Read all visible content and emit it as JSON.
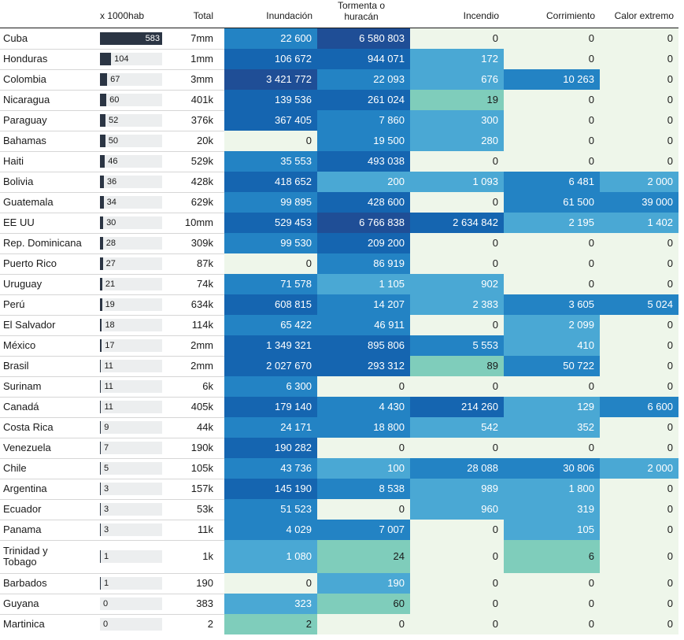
{
  "headers": {
    "per1000": "x 1000hab",
    "total": "Total",
    "cats": [
      "Inundación",
      "Tormenta o\nhuracán",
      "Incendio",
      "Corrimiento",
      "Calor extremo"
    ]
  },
  "colors": {
    "bar": "#2b3544",
    "bar_bg": "#eceeef",
    "zero": "#eef6ea",
    "scale": [
      "#7fcdbb",
      "#4aa8d4",
      "#2383c4",
      "#1565b0",
      "#1f4e96"
    ]
  },
  "chart_data": {
    "type": "table",
    "columns": [
      "x 1000hab",
      "Total",
      "Inundación",
      "Tormenta o huracán",
      "Incendio",
      "Corrimiento",
      "Calor extremo"
    ],
    "rows": [
      {
        "country": "Cuba",
        "per1000": 583,
        "per1000_label": "583",
        "total": "7mm",
        "vals": [
          22600,
          6580803,
          0,
          0,
          0
        ],
        "labels": [
          "22 600",
          "6 580 803",
          "0",
          "0",
          "0"
        ]
      },
      {
        "country": "Honduras",
        "per1000": 104,
        "per1000_label": "104",
        "total": "1mm",
        "vals": [
          106672,
          944071,
          172,
          0,
          0
        ],
        "labels": [
          "106 672",
          "944 071",
          "172",
          "0",
          "0"
        ]
      },
      {
        "country": "Colombia",
        "per1000": 67,
        "per1000_label": "67",
        "total": "3mm",
        "vals": [
          3421772,
          22093,
          676,
          10263,
          0
        ],
        "labels": [
          "3 421 772",
          "22 093",
          "676",
          "10 263",
          "0"
        ]
      },
      {
        "country": "Nicaragua",
        "per1000": 60,
        "per1000_label": "60",
        "total": "401k",
        "vals": [
          139536,
          261024,
          19,
          0,
          0
        ],
        "labels": [
          "139 536",
          "261 024",
          "19",
          "0",
          "0"
        ]
      },
      {
        "country": "Paraguay",
        "per1000": 52,
        "per1000_label": "52",
        "total": "376k",
        "vals": [
          367405,
          7860,
          300,
          0,
          0
        ],
        "labels": [
          "367 405",
          "7 860",
          "300",
          "0",
          "0"
        ]
      },
      {
        "country": "Bahamas",
        "per1000": 50,
        "per1000_label": "50",
        "total": "20k",
        "vals": [
          0,
          19500,
          280,
          0,
          0
        ],
        "labels": [
          "0",
          "19 500",
          "280",
          "0",
          "0"
        ]
      },
      {
        "country": "Haiti",
        "per1000": 46,
        "per1000_label": "46",
        "total": "529k",
        "vals": [
          35553,
          493038,
          0,
          0,
          0
        ],
        "labels": [
          "35 553",
          "493 038",
          "0",
          "0",
          "0"
        ]
      },
      {
        "country": "Bolivia",
        "per1000": 36,
        "per1000_label": "36",
        "total": "428k",
        "vals": [
          418652,
          200,
          1093,
          6481,
          2000
        ],
        "labels": [
          "418 652",
          "200",
          "1 093",
          "6 481",
          "2 000"
        ]
      },
      {
        "country": "Guatemala",
        "per1000": 34,
        "per1000_label": "34",
        "total": "629k",
        "vals": [
          99895,
          428600,
          0,
          61500,
          39000
        ],
        "labels": [
          "99 895",
          "428 600",
          "0",
          "61 500",
          "39 000"
        ]
      },
      {
        "country": "EE UU",
        "per1000": 30,
        "per1000_label": "30",
        "total": "10mm",
        "vals": [
          529453,
          6766838,
          2634842,
          2195,
          1402
        ],
        "labels": [
          "529 453",
          "6 766 838",
          "2 634 842",
          "2 195",
          "1 402"
        ]
      },
      {
        "country": "Rep. Dominicana",
        "per1000": 28,
        "per1000_label": "28",
        "total": "309k",
        "vals": [
          99530,
          209200,
          0,
          0,
          0
        ],
        "labels": [
          "99 530",
          "209 200",
          "0",
          "0",
          "0"
        ]
      },
      {
        "country": "Puerto Rico",
        "per1000": 27,
        "per1000_label": "27",
        "total": "87k",
        "vals": [
          0,
          86919,
          0,
          0,
          0
        ],
        "labels": [
          "0",
          "86 919",
          "0",
          "0",
          "0"
        ]
      },
      {
        "country": "Uruguay",
        "per1000": 21,
        "per1000_label": "21",
        "total": "74k",
        "vals": [
          71578,
          1105,
          902,
          0,
          0
        ],
        "labels": [
          "71 578",
          "1 105",
          "902",
          "0",
          "0"
        ]
      },
      {
        "country": "Perú",
        "per1000": 19,
        "per1000_label": "19",
        "total": "634k",
        "vals": [
          608815,
          14207,
          2383,
          3605,
          5024
        ],
        "labels": [
          "608 815",
          "14 207",
          "2 383",
          "3 605",
          "5 024"
        ]
      },
      {
        "country": "El Salvador",
        "per1000": 18,
        "per1000_label": "18",
        "total": "114k",
        "vals": [
          65422,
          46911,
          0,
          2099,
          0
        ],
        "labels": [
          "65 422",
          "46 911",
          "0",
          "2 099",
          "0"
        ]
      },
      {
        "country": "México",
        "per1000": 17,
        "per1000_label": "17",
        "total": "2mm",
        "vals": [
          1349321,
          895806,
          5553,
          410,
          0
        ],
        "labels": [
          "1 349 321",
          "895 806",
          "5 553",
          "410",
          "0"
        ]
      },
      {
        "country": "Brasil",
        "per1000": 11,
        "per1000_label": "11",
        "total": "2mm",
        "vals": [
          2027670,
          293312,
          89,
          50722,
          0
        ],
        "labels": [
          "2 027 670",
          "293 312",
          "89",
          "50 722",
          "0"
        ]
      },
      {
        "country": "Surinam",
        "per1000": 11,
        "per1000_label": "11",
        "total": "6k",
        "vals": [
          6300,
          0,
          0,
          0,
          0
        ],
        "labels": [
          "6 300",
          "0",
          "0",
          "0",
          "0"
        ]
      },
      {
        "country": "Canadá",
        "per1000": 11,
        "per1000_label": "11",
        "total": "405k",
        "vals": [
          179140,
          4430,
          214260,
          129,
          6600
        ],
        "labels": [
          "179 140",
          "4 430",
          "214 260",
          "129",
          "6 600"
        ]
      },
      {
        "country": "Costa Rica",
        "per1000": 9,
        "per1000_label": "9",
        "total": "44k",
        "vals": [
          24171,
          18800,
          542,
          352,
          0
        ],
        "labels": [
          "24 171",
          "18 800",
          "542",
          "352",
          "0"
        ]
      },
      {
        "country": "Venezuela",
        "per1000": 7,
        "per1000_label": "7",
        "total": "190k",
        "vals": [
          190282,
          0,
          0,
          0,
          0
        ],
        "labels": [
          "190 282",
          "0",
          "0",
          "0",
          "0"
        ]
      },
      {
        "country": "Chile",
        "per1000": 5,
        "per1000_label": "5",
        "total": "105k",
        "vals": [
          43736,
          100,
          28088,
          30806,
          2000
        ],
        "labels": [
          "43 736",
          "100",
          "28 088",
          "30 806",
          "2 000"
        ]
      },
      {
        "country": "Argentina",
        "per1000": 3,
        "per1000_label": "3",
        "total": "157k",
        "vals": [
          145190,
          8538,
          989,
          1800,
          0
        ],
        "labels": [
          "145 190",
          "8 538",
          "989",
          "1 800",
          "0"
        ]
      },
      {
        "country": "Ecuador",
        "per1000": 3,
        "per1000_label": "3",
        "total": "53k",
        "vals": [
          51523,
          0,
          960,
          319,
          0
        ],
        "labels": [
          "51 523",
          "0",
          "960",
          "319",
          "0"
        ]
      },
      {
        "country": "Panama",
        "per1000": 3,
        "per1000_label": "3",
        "total": "11k",
        "vals": [
          4029,
          7007,
          0,
          105,
          0
        ],
        "labels": [
          "4 029",
          "7 007",
          "0",
          "105",
          "0"
        ]
      },
      {
        "country": "Trinidad y\nTobago",
        "per1000": 1,
        "per1000_label": "1",
        "total": "1k",
        "vals": [
          1080,
          24,
          0,
          6,
          0
        ],
        "labels": [
          "1 080",
          "24",
          "0",
          "6",
          "0"
        ]
      },
      {
        "country": "Barbados",
        "per1000": 1,
        "per1000_label": "1",
        "total": "190",
        "vals": [
          0,
          190,
          0,
          0,
          0
        ],
        "labels": [
          "0",
          "190",
          "0",
          "0",
          "0"
        ]
      },
      {
        "country": "Guyana",
        "per1000": 0,
        "per1000_label": "0",
        "total": "383",
        "vals": [
          323,
          60,
          0,
          0,
          0
        ],
        "labels": [
          "323",
          "60",
          "0",
          "0",
          "0"
        ]
      },
      {
        "country": "Martinica",
        "per1000": 0,
        "per1000_label": "0",
        "total": "2",
        "vals": [
          2,
          0,
          0,
          0,
          0
        ],
        "labels": [
          "2",
          "0",
          "0",
          "0",
          "0"
        ]
      }
    ]
  }
}
